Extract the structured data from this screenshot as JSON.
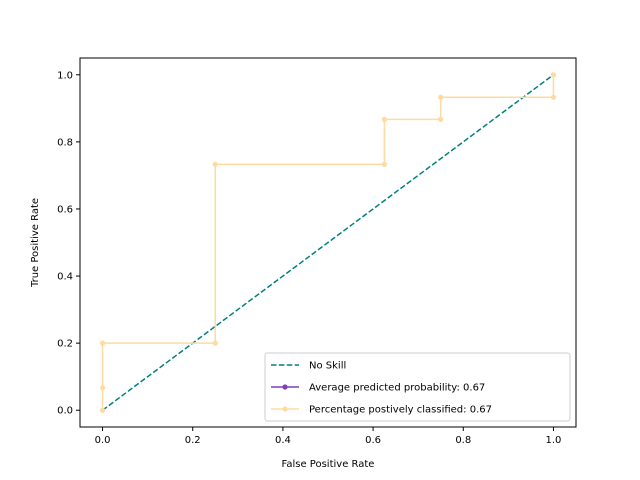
{
  "chart_data": {
    "type": "line",
    "title": "",
    "xlabel": "False Positive Rate",
    "ylabel": "True Positive Rate",
    "xlim": [
      -0.05,
      1.05
    ],
    "ylim": [
      -0.05,
      1.05
    ],
    "xticks": [
      0.0,
      0.2,
      0.4,
      0.6,
      0.8,
      1.0
    ],
    "yticks": [
      0.0,
      0.2,
      0.4,
      0.6,
      0.8,
      1.0
    ],
    "grid": false,
    "legend_position": "lower-right",
    "series": [
      {
        "name": "No Skill",
        "color": "#008080",
        "style": "dashed",
        "marker": "none",
        "x": [
          0.0,
          1.0
        ],
        "y": [
          0.0,
          1.0
        ]
      },
      {
        "name": "Average predicted probability: 0.67",
        "color": "#7f3fbf",
        "style": "solid",
        "marker": "dot",
        "x": [],
        "y": []
      },
      {
        "name": "Percentage postively classified: 0.67",
        "color": "#ffdba0",
        "style": "solid",
        "marker": "dot",
        "x": [
          0.0,
          0.0,
          0.0,
          0.25,
          0.25,
          0.625,
          0.625,
          0.75,
          0.75,
          1.0,
          1.0
        ],
        "y": [
          0.0,
          0.067,
          0.2,
          0.2,
          0.733,
          0.733,
          0.867,
          0.867,
          0.933,
          0.933,
          1.0
        ]
      }
    ]
  }
}
